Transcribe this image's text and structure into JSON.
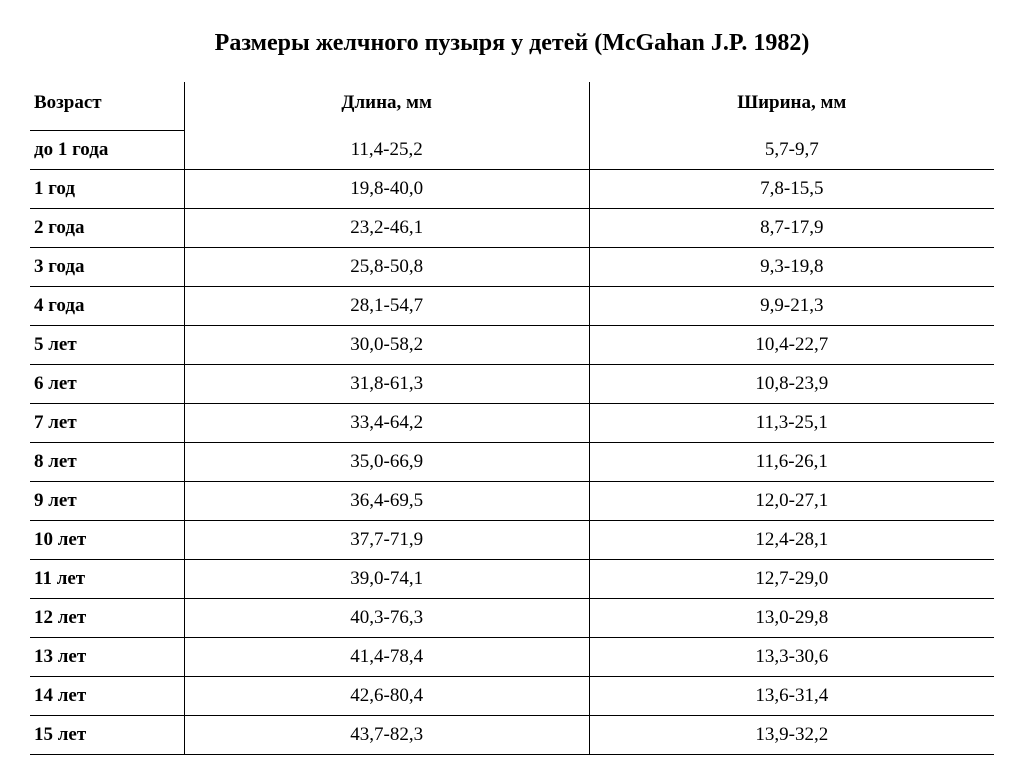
{
  "title": "Размеры желчного пузыря у детей (McGahan J.P. 1982)",
  "table": {
    "columns": {
      "age": "Возраст",
      "length": "Длина, мм",
      "width": "Ширина, мм"
    },
    "rows": [
      {
        "age": "до 1 года",
        "length": "11,4-25,2",
        "width": "5,7-9,7"
      },
      {
        "age": "1 год",
        "length": "19,8-40,0",
        "width": "7,8-15,5"
      },
      {
        "age": "2 года",
        "length": "23,2-46,1",
        "width": "8,7-17,9"
      },
      {
        "age": "3 года",
        "length": "25,8-50,8",
        "width": "9,3-19,8"
      },
      {
        "age": "4 года",
        "length": "28,1-54,7",
        "width": "9,9-21,3"
      },
      {
        "age": "5 лет",
        "length": "30,0-58,2",
        "width": "10,4-22,7"
      },
      {
        "age": "6 лет",
        "length": "31,8-61,3",
        "width": "10,8-23,9"
      },
      {
        "age": "7 лет",
        "length": "33,4-64,2",
        "width": "11,3-25,1"
      },
      {
        "age": "8 лет",
        "length": "35,0-66,9",
        "width": "11,6-26,1"
      },
      {
        "age": "9 лет",
        "length": "36,4-69,5",
        "width": "12,0-27,1"
      },
      {
        "age": "10 лет",
        "length": "37,7-71,9",
        "width": "12,4-28,1"
      },
      {
        "age": "11 лет",
        "length": "39,0-74,1",
        "width": "12,7-29,0"
      },
      {
        "age": "12 лет",
        "length": "40,3-76,3",
        "width": "13,0-29,8"
      },
      {
        "age": "13 лет",
        "length": "41,4-78,4",
        "width": "13,3-30,6"
      },
      {
        "age": "14 лет",
        "length": "42,6-80,4",
        "width": "13,6-31,4"
      },
      {
        "age": "15 лет",
        "length": "43,7-82,3",
        "width": "13,9-32,2"
      }
    ],
    "styling": {
      "title_fontsize_pt": 18,
      "body_fontsize_pt": 14,
      "font_family": "Times New Roman",
      "text_color": "#000000",
      "background_color": "#ffffff",
      "border_color": "#000000",
      "col_widths_pct": [
        16,
        42,
        42
      ],
      "age_align": "left",
      "value_align": "center"
    }
  }
}
